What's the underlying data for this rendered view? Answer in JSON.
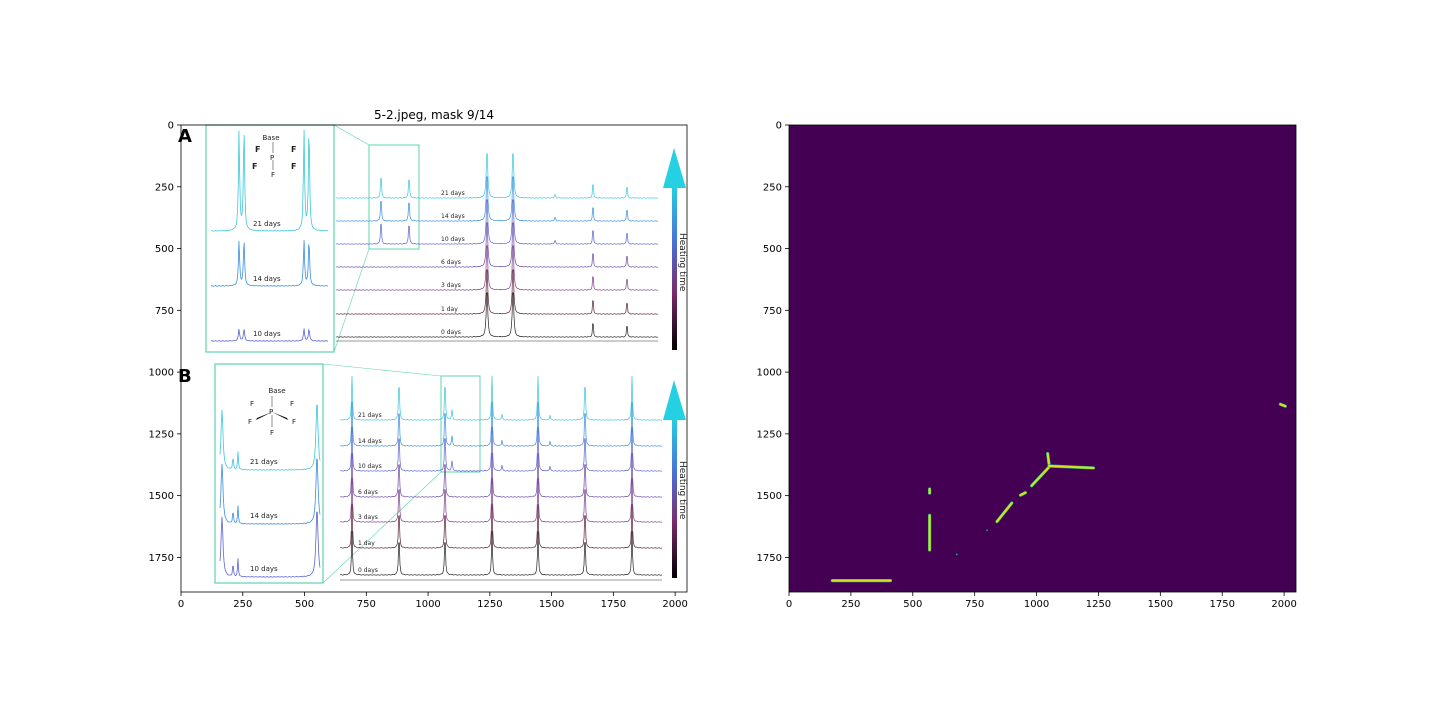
{
  "figure": {
    "title": "5-2.jpeg, mask 9/14",
    "colors": {
      "mask_background": "#440154",
      "mask_foreground": "#d2e21b",
      "mask_edge": "#22a884",
      "highlight_box": "#5fd3b0"
    }
  },
  "chart_data": [
    {
      "type": "image",
      "title": "5-2.jpeg, mask 9/14",
      "xlim": [
        0,
        2048
      ],
      "ylim": [
        1890,
        0
      ],
      "x_ticks": [
        0,
        250,
        500,
        750,
        1000,
        1250,
        1500,
        1750,
        2000
      ],
      "y_ticks": [
        0,
        250,
        500,
        750,
        1000,
        1250,
        1500,
        1750
      ],
      "x_tick_labels": [
        "0",
        "250",
        "500",
        "750",
        "1000",
        "1250",
        "1500",
        "1750",
        "2000"
      ],
      "y_tick_labels": [
        "0",
        "250",
        "500",
        "750",
        "1000",
        "1250",
        "1500",
        "1750"
      ],
      "panel_labels": [
        "A",
        "B"
      ],
      "panel_a": {
        "inset_day_labels": [
          "21 days",
          "14 days",
          "10 days"
        ],
        "day_labels": [
          "21 days",
          "14 days",
          "10 days",
          "6 days",
          "3 days",
          "1 day",
          "0 days"
        ],
        "side_label": "Heating time",
        "structure_label": "Base",
        "structure_atoms": [
          "F",
          "F",
          "F",
          "F",
          "P",
          "F"
        ]
      },
      "panel_b": {
        "inset_day_labels": [
          "21 days",
          "14 days",
          "10 days"
        ],
        "day_labels": [
          "21 days",
          "14 days",
          "10 days",
          "6 days",
          "3 days",
          "1 day",
          "0 days"
        ],
        "side_label": "Heating time",
        "structure_label": "Base",
        "structure_atoms": [
          "F",
          "F",
          "F",
          "F",
          "P",
          "F"
        ]
      }
    },
    {
      "type": "heatmap",
      "title": "",
      "xlim": [
        0,
        2048
      ],
      "ylim": [
        1890,
        0
      ],
      "x_ticks": [
        0,
        250,
        500,
        750,
        1000,
        1250,
        1500,
        1750,
        2000
      ],
      "y_ticks": [
        0,
        250,
        500,
        750,
        1000,
        1250,
        1500,
        1750
      ],
      "x_tick_labels": [
        "0",
        "250",
        "500",
        "750",
        "1000",
        "1250",
        "1500",
        "1750",
        "2000"
      ],
      "y_tick_labels": [
        "0",
        "250",
        "500",
        "750",
        "1000",
        "1250",
        "1500",
        "1750"
      ],
      "mask_regions": [
        {
          "shape": "segment",
          "points": [
            [
              175,
              1844
            ],
            [
              410,
              1844
            ]
          ]
        },
        {
          "shape": "segment",
          "points": [
            [
              568,
              1580
            ],
            [
              568,
              1720
            ]
          ]
        },
        {
          "shape": "segment",
          "points": [
            [
              568,
              1473
            ],
            [
              568,
              1490
            ]
          ]
        },
        {
          "shape": "segment",
          "points": [
            [
              840,
              1605
            ],
            [
              900,
              1530
            ]
          ]
        },
        {
          "shape": "segment",
          "points": [
            [
              935,
              1498
            ],
            [
              955,
              1488
            ]
          ]
        },
        {
          "shape": "segment",
          "points": [
            [
              980,
              1460
            ],
            [
              1050,
              1385
            ]
          ]
        },
        {
          "shape": "segment",
          "points": [
            [
              1050,
              1380
            ],
            [
              1230,
              1388
            ]
          ]
        },
        {
          "shape": "segment",
          "points": [
            [
              1045,
              1330
            ],
            [
              1050,
              1370
            ]
          ]
        },
        {
          "shape": "segment",
          "points": [
            [
              1985,
              1130
            ],
            [
              2005,
              1138
            ]
          ]
        },
        {
          "shape": "dot",
          "points": [
            [
              800,
              1640
            ]
          ]
        },
        {
          "shape": "dot",
          "points": [
            [
              678,
              1738
            ]
          ]
        }
      ]
    }
  ]
}
